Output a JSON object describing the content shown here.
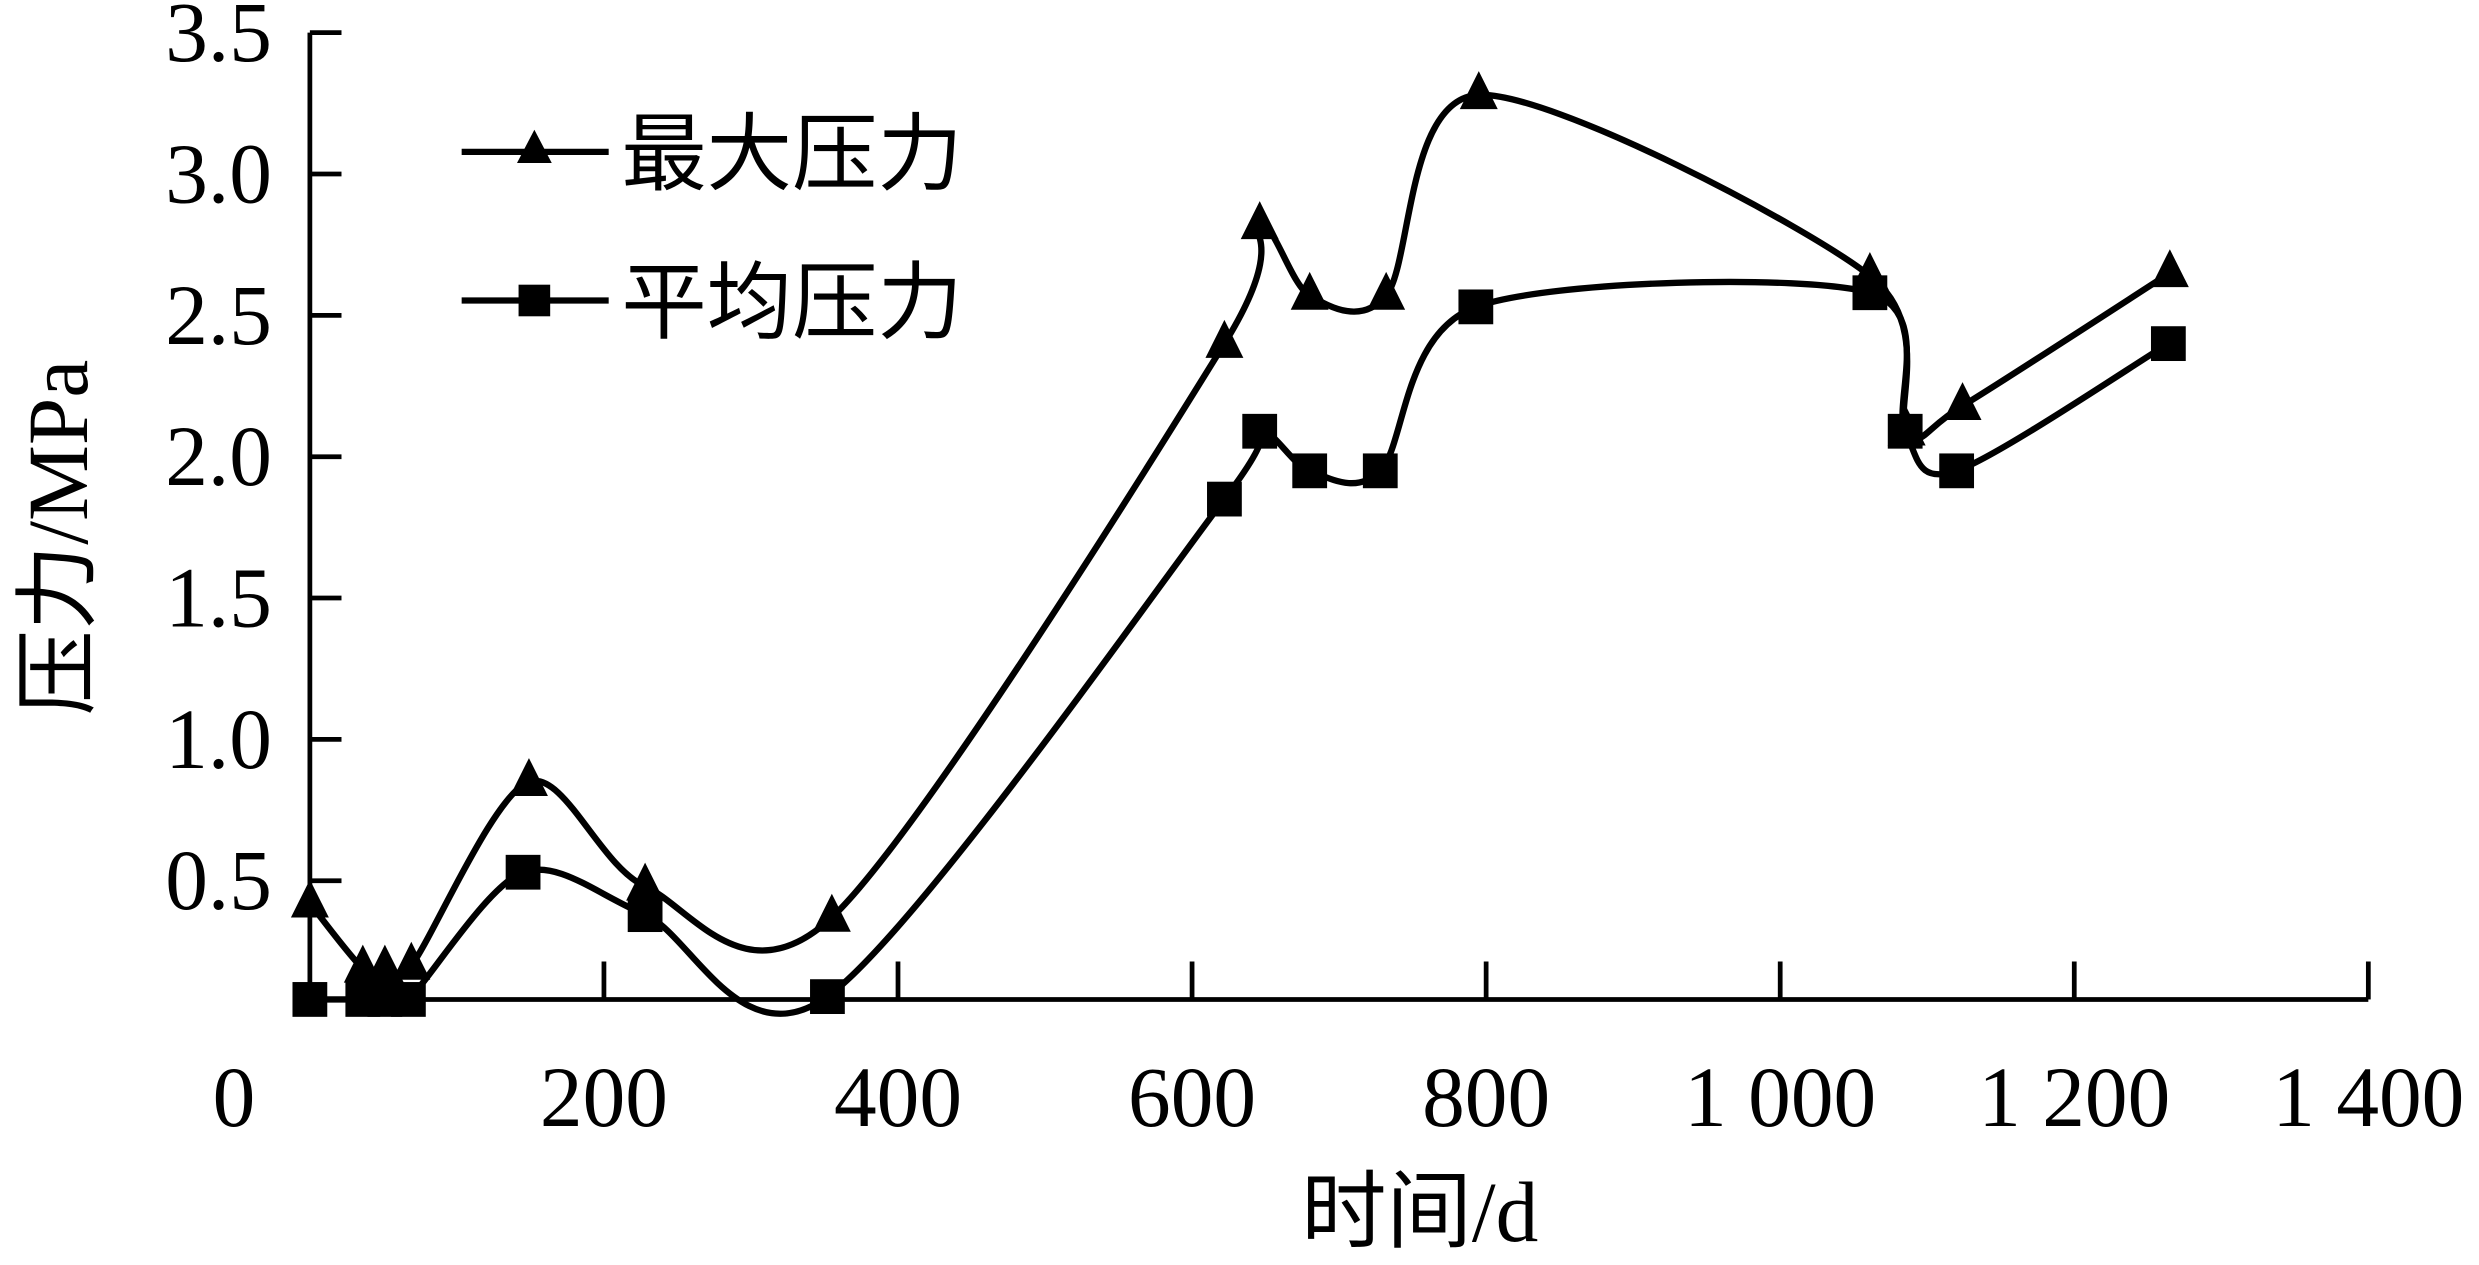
{
  "chart_data": {
    "type": "line",
    "xlabel": "时间/d",
    "ylabel": "压力/MPa",
    "xlim": [
      0,
      1400
    ],
    "ylim": [
      0.08,
      3.5
    ],
    "xticks": [
      0,
      200,
      400,
      600,
      800,
      1000,
      1200,
      1400
    ],
    "xtick_labels": [
      "0",
      "200",
      "400",
      "600",
      "800",
      "1 000",
      "1 200",
      "1 400"
    ],
    "yticks": [
      0.5,
      1.0,
      1.5,
      2.0,
      2.5,
      3.0,
      3.5
    ],
    "ytick_labels": [
      "0.5",
      "1.0",
      "1.5",
      "2.0",
      "2.5",
      "3.0",
      "3.5"
    ],
    "grid": false,
    "legend_position": "top-left",
    "color": "#000000",
    "series": [
      {
        "name": "最大压力",
        "marker": "triangle",
        "x": [
          0,
          36,
          51,
          69,
          149,
          228,
          355,
          622,
          646,
          680,
          732,
          795,
          1061,
          1086,
          1124,
          1265
        ],
        "y": [
          0.42,
          0.19,
          0.19,
          0.2,
          0.85,
          0.48,
          0.37,
          2.4,
          2.82,
          2.57,
          2.57,
          3.28,
          2.64,
          2.09,
          2.18,
          2.65
        ]
      },
      {
        "name": "平均压力",
        "marker": "square",
        "x": [
          0,
          36,
          51,
          67,
          145,
          228,
          352,
          622,
          646,
          680,
          728,
          793,
          1061,
          1085,
          1120,
          1264
        ],
        "y": [
          0.08,
          0.08,
          0.08,
          0.08,
          0.53,
          0.38,
          0.09,
          1.85,
          2.09,
          1.95,
          1.95,
          2.53,
          2.58,
          2.09,
          1.95,
          2.4
        ]
      }
    ]
  }
}
